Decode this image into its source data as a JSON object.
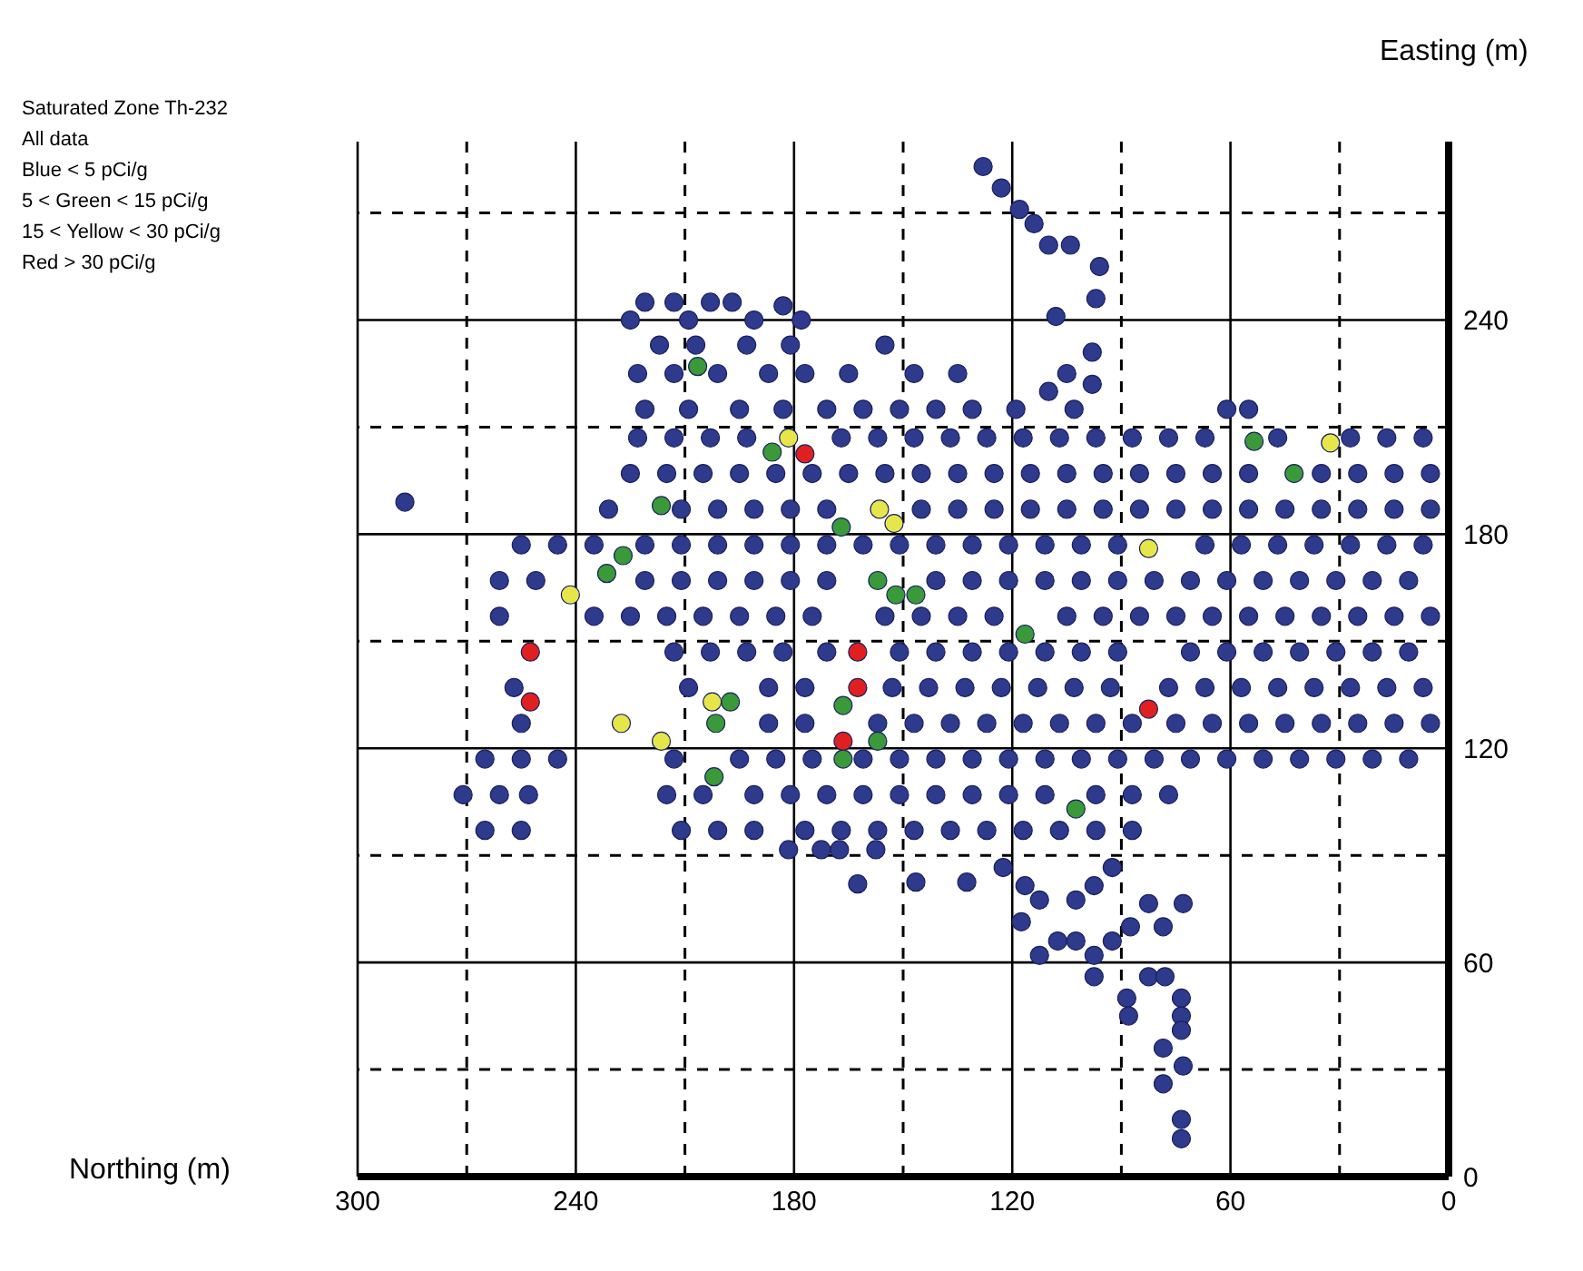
{
  "chart_data": {
    "type": "scatter",
    "title": "Saturated Zone Th-232",
    "subtitle": "All data",
    "xlabel": "Northing (m)",
    "ylabel": "Easting (m)",
    "annotations": [
      "Blue < 5 pCi/g",
      "5 < Green < 15 pCi/g",
      "15 < Yellow < 30 pCi/g",
      "Red > 30 pCi/g"
    ],
    "xlim": [
      300,
      0
    ],
    "ylim": [
      0,
      290
    ],
    "xticks": [
      300,
      {
        "value": 270,
        "label": null
      },
      240,
      {
        "value": 210,
        "label": null
      },
      180,
      {
        "value": 150,
        "label": null
      },
      120,
      {
        "value": 90,
        "label": null
      },
      60,
      {
        "value": 30,
        "label": null
      },
      0
    ],
    "yticks": [
      0,
      {
        "value": 30,
        "label": null
      },
      60,
      {
        "value": 90,
        "label": null
      },
      120,
      {
        "value": 150,
        "label": null
      },
      180,
      {
        "value": 210,
        "label": null
      },
      240,
      {
        "value": 270,
        "label": null
      }
    ],
    "grid": true,
    "marker": "circle",
    "series": [
      {
        "color": "#2e3a8c",
        "x": [
          287,
          128,
          123,
          118,
          114,
          110,
          104,
          96,
          97,
          108,
          98,
          98,
          110,
          221,
          213,
          203,
          197,
          183,
          225,
          209,
          191,
          178,
          217,
          207,
          193,
          181,
          155,
          223,
          213,
          201,
          187,
          177,
          165,
          147,
          135,
          105,
          221,
          209,
          195,
          183,
          171,
          161,
          151,
          141,
          131,
          119,
          103,
          61,
          55,
          223,
          213,
          203,
          193,
          167,
          157,
          147,
          137,
          127,
          117,
          107,
          97,
          87,
          77,
          67,
          47,
          27,
          17,
          7,
          225,
          215,
          205,
          195,
          185,
          175,
          165,
          155,
          145,
          135,
          125,
          115,
          105,
          95,
          85,
          75,
          65,
          55,
          35,
          25,
          15,
          5,
          231,
          211,
          201,
          191,
          181,
          171,
          145,
          135,
          125,
          115,
          105,
          95,
          85,
          75,
          65,
          55,
          45,
          35,
          25,
          15,
          5,
          255,
          245,
          235,
          221,
          211,
          201,
          191,
          181,
          171,
          161,
          151,
          141,
          131,
          121,
          111,
          101,
          91,
          67,
          57,
          47,
          37,
          27,
          17,
          7,
          261,
          251,
          221,
          211,
          201,
          191,
          181,
          171,
          141,
          131,
          121,
          111,
          101,
          91,
          81,
          71,
          61,
          51,
          41,
          31,
          21,
          11,
          261,
          235,
          225,
          215,
          205,
          195,
          185,
          175,
          155,
          145,
          135,
          125,
          105,
          95,
          85,
          75,
          65,
          55,
          45,
          35,
          25,
          15,
          5,
          213,
          203,
          193,
          183,
          171,
          151,
          141,
          131,
          121,
          111,
          101,
          91,
          71,
          61,
          51,
          41,
          31,
          21,
          11,
          257,
          209,
          187,
          177,
          153,
          143,
          133,
          123,
          113,
          103,
          93,
          77,
          67,
          57,
          47,
          37,
          27,
          17,
          7,
          255,
          187,
          177,
          157,
          147,
          137,
          127,
          117,
          107,
          97,
          87,
          75,
          65,
          55,
          45,
          35,
          25,
          15,
          5,
          265,
          255,
          245,
          213,
          195,
          185,
          175,
          161,
          151,
          141,
          131,
          121,
          111,
          101,
          91,
          81,
          71,
          61,
          51,
          41,
          31,
          21,
          11,
          271,
          261,
          253,
          215,
          205,
          191,
          181,
          171,
          161,
          151,
          141,
          131,
          121,
          111,
          97,
          87,
          77,
          265,
          255,
          211,
          201,
          191,
          177,
          167,
          157,
          147,
          137,
          127,
          117,
          107,
          97,
          87,
          181.5,
          172.5,
          167.5,
          157.5,
          162.5,
          146.5,
          132.5,
          122.5,
          116.5,
          112.5,
          117.5,
          112.5,
          97.5,
          102.5,
          97.5,
          92.5,
          92.5,
          87.5,
          82.5,
          78.5,
          73,
          82.5,
          78,
          88.5,
          88,
          73.5,
          73.5,
          73.5,
          78.5,
          73,
          78.5,
          73.5,
          73.5,
          97.5,
          107.5,
          102.5
        ],
        "values": [
          189,
          283,
          277,
          271,
          267,
          261,
          261,
          255,
          246,
          241,
          231,
          222,
          220,
          245,
          245,
          245,
          245,
          244,
          240,
          240,
          240,
          240,
          233,
          233,
          233,
          233,
          233,
          225,
          225,
          225,
          225,
          225,
          225,
          225,
          225,
          225,
          215,
          215,
          215,
          215,
          215,
          215,
          215,
          215,
          215,
          215,
          215,
          215,
          215,
          207,
          207,
          207,
          207,
          207,
          207,
          207,
          207,
          207,
          207,
          207,
          207,
          207,
          207,
          207,
          207,
          207,
          207,
          207,
          197,
          197,
          197,
          197,
          197,
          197,
          197,
          197,
          197,
          197,
          197,
          197,
          197,
          197,
          197,
          197,
          197,
          197,
          197,
          197,
          197,
          197,
          187,
          187,
          187,
          187,
          187,
          187,
          187,
          187,
          187,
          187,
          187,
          187,
          187,
          187,
          187,
          187,
          187,
          187,
          187,
          187,
          187,
          177,
          177,
          177,
          177,
          177,
          177,
          177,
          177,
          177,
          177,
          177,
          177,
          177,
          177,
          177,
          177,
          177,
          177,
          177,
          177,
          177,
          177,
          177,
          177,
          167,
          167,
          167,
          167,
          167,
          167,
          167,
          167,
          167,
          167,
          167,
          167,
          167,
          167,
          167,
          167,
          167,
          167,
          167,
          167,
          167,
          167,
          157,
          157,
          157,
          157,
          157,
          157,
          157,
          157,
          157,
          157,
          157,
          157,
          157,
          157,
          157,
          157,
          157,
          157,
          157,
          157,
          157,
          157,
          157,
          147,
          147,
          147,
          147,
          147,
          147,
          147,
          147,
          147,
          147,
          147,
          147,
          147,
          147,
          147,
          147,
          147,
          147,
          147,
          137,
          137,
          137,
          137,
          137,
          137,
          137,
          137,
          137,
          137,
          137,
          137,
          137,
          137,
          137,
          137,
          137,
          137,
          137,
          127,
          127,
          127,
          127,
          127,
          127,
          127,
          127,
          127,
          127,
          127,
          127,
          127,
          127,
          127,
          127,
          127,
          127,
          127,
          117,
          117,
          117,
          117,
          117,
          117,
          117,
          117,
          117,
          117,
          117,
          117,
          117,
          117,
          117,
          117,
          117,
          117,
          117,
          117,
          117,
          117,
          117,
          107,
          107,
          107,
          107,
          107,
          107,
          107,
          107,
          107,
          107,
          107,
          107,
          107,
          107,
          107,
          107,
          107,
          97,
          97,
          97,
          97,
          97,
          97,
          97,
          97,
          97,
          97,
          97,
          97,
          97,
          97,
          97,
          91.6,
          91.6,
          91.6,
          91.6,
          82,
          82.5,
          82.5,
          86.6,
          81.5,
          77.5,
          71.4,
          62,
          56,
          77.5,
          81.5,
          86.6,
          66,
          70,
          76.5,
          70,
          76.5,
          56,
          56,
          50,
          45,
          50,
          45,
          41,
          36,
          31,
          26,
          16,
          10.6,
          62,
          66,
          66
        ]
      },
      {
        "color": "#3a9a3a",
        "x": [
          206.5,
          186,
          216.5,
          167,
          227,
          231.5,
          157,
          152,
          146.5,
          116.5,
          197.5,
          201.5,
          166.5,
          157,
          166.5,
          202,
          102.5,
          53.5,
          42.5
        ],
        "values": [
          227,
          203,
          188,
          182,
          174,
          169,
          167,
          163,
          163,
          152,
          133,
          127,
          132,
          122,
          117,
          112,
          103,
          206,
          197
        ]
      },
      {
        "color": "#e6e64a",
        "x": [
          181.5,
          156.5,
          32.5,
          152.5,
          241.5,
          202.5,
          227.5,
          216.5,
          82.5
        ],
        "values": [
          207,
          187,
          205.6,
          183,
          163,
          133,
          127,
          122,
          176
        ]
      },
      {
        "color": "#e02020",
        "x": [
          177,
          252.5,
          252.5,
          162.5,
          162.5,
          166.5,
          82.5
        ],
        "values": [
          202.5,
          147,
          133,
          147,
          137,
          122,
          131
        ]
      }
    ]
  }
}
